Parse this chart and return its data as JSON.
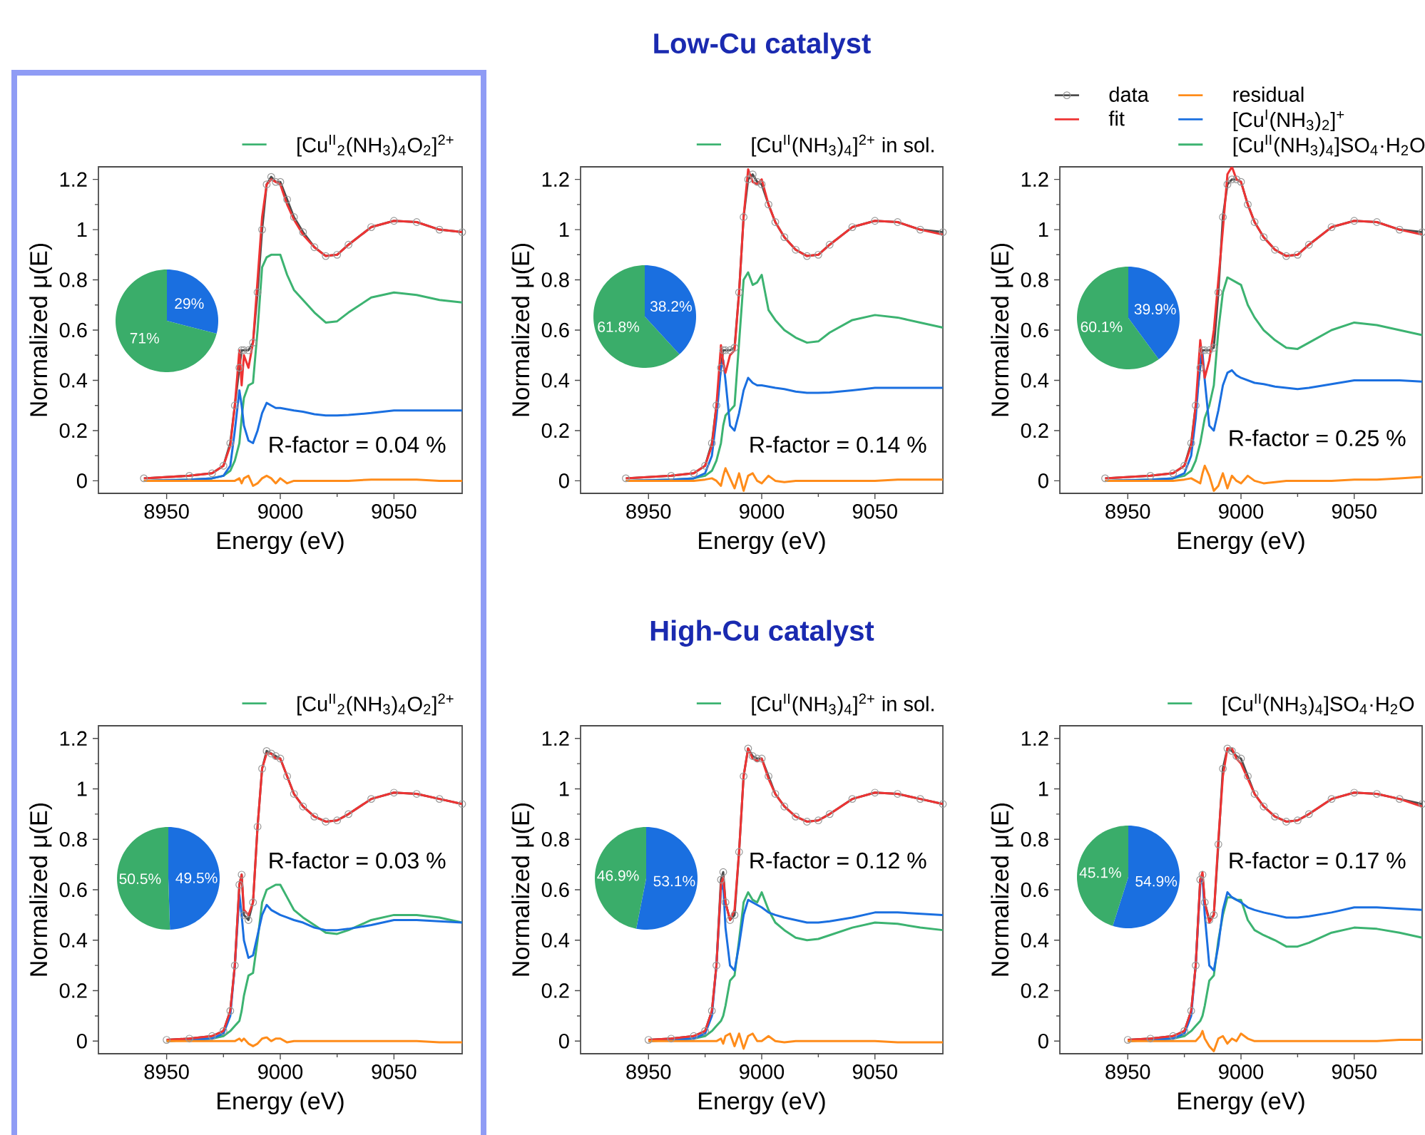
{
  "chart_data": [
    {
      "type": "line",
      "xlabel": "Energy (eV)",
      "ylabel": "Normalized μ(E)",
      "xlim": [
        8920,
        9080
      ],
      "xticks": [
        8950,
        9000,
        9050
      ],
      "ylim": [
        -0.05,
        1.25
      ],
      "yticks": [
        0,
        0.2,
        0.4,
        0.6,
        0.8,
        1,
        1.2
      ],
      "legend": "top right",
      "annotations": [
        "R-factor = 0.04 %"
      ],
      "x": [
        8940,
        8960,
        8970,
        8975,
        8978,
        8980,
        8982,
        8983,
        8984,
        8986,
        8988,
        8990,
        8992,
        8994,
        8996,
        8998,
        9000,
        9003,
        9006,
        9010,
        9015,
        9020,
        9025,
        9030,
        9040,
        9050,
        9060,
        9070,
        9080
      ],
      "series": [
        {
          "color": "#4d4d4d",
          "marker": "circle",
          "values": [
            0.01,
            0.02,
            0.03,
            0.06,
            0.15,
            0.3,
            0.45,
            0.52,
            0.52,
            0.52,
            0.55,
            0.75,
            1.0,
            1.18,
            1.21,
            1.19,
            1.19,
            1.12,
            1.05,
            0.99,
            0.93,
            0.895,
            0.9,
            0.94,
            1.01,
            1.035,
            1.03,
            1.0,
            0.99
          ]
        },
        {
          "color": "#ff8c1a",
          "values": [
            0,
            0,
            0,
            0,
            0,
            0,
            0.01,
            -0.01,
            0.01,
            0.02,
            -0.02,
            -0.01,
            0.01,
            0.02,
            0.01,
            -0.01,
            0.01,
            -0.01,
            0,
            0,
            0,
            0,
            0,
            0,
            0.005,
            0.005,
            0.005,
            0,
            0
          ]
        },
        {
          "color": "#ee3333",
          "values": [
            0.01,
            0.02,
            0.03,
            0.06,
            0.14,
            0.3,
            0.52,
            0.38,
            0.5,
            0.45,
            0.55,
            0.8,
            1.05,
            1.18,
            1.2,
            1.19,
            1.18,
            1.1,
            1.04,
            0.98,
            0.93,
            0.895,
            0.9,
            0.94,
            1.01,
            1.035,
            1.03,
            1.0,
            0.99
          ]
        },
        {
          "color": "#1a6fe0",
          "values": [
            0,
            0.005,
            0.01,
            0.02,
            0.06,
            0.2,
            0.36,
            0.3,
            0.22,
            0.16,
            0.15,
            0.2,
            0.27,
            0.31,
            0.3,
            0.29,
            0.29,
            0.285,
            0.28,
            0.275,
            0.265,
            0.26,
            0.26,
            0.262,
            0.27,
            0.28,
            0.28,
            0.28,
            0.28
          ]
        },
        {
          "name": "[Cu$^{II}$$_{2}$(NH$_{3}$)$_{4}$O$_{2}$]$^{2+}$",
          "color": "#3cb371",
          "values": [
            0,
            0.005,
            0.01,
            0.02,
            0.04,
            0.08,
            0.15,
            0.25,
            0.33,
            0.38,
            0.39,
            0.6,
            0.85,
            0.89,
            0.9,
            0.9,
            0.9,
            0.82,
            0.76,
            0.72,
            0.67,
            0.63,
            0.635,
            0.67,
            0.73,
            0.75,
            0.74,
            0.72,
            0.71
          ]
        }
      ]
    },
    {
      "type": "pie",
      "categories": [
        null,
        null
      ],
      "values": [
        29,
        71
      ],
      "colors": [
        "#1a6fe0",
        "#3aad6a"
      ],
      "value_labels": [
        "29%",
        "71%"
      ]
    },
    {
      "type": "line",
      "title": "Low-Cu catalyst",
      "xlabel": "Energy (eV)",
      "ylabel": "Normalized μ(E)",
      "xlim": [
        8920,
        9080
      ],
      "xticks": [
        8950,
        9000,
        9050
      ],
      "ylim": [
        -0.05,
        1.25
      ],
      "yticks": [
        0,
        0.2,
        0.4,
        0.6,
        0.8,
        1,
        1.2
      ],
      "legend": "top right",
      "annotations": [
        "R-factor = 0.14 %"
      ],
      "x": [
        8940,
        8960,
        8970,
        8975,
        8978,
        8980,
        8982,
        8983,
        8984,
        8986,
        8988,
        8990,
        8992,
        8994,
        8996,
        8998,
        9000,
        9003,
        9006,
        9010,
        9015,
        9020,
        9025,
        9030,
        9040,
        9050,
        9060,
        9070,
        9080
      ],
      "series": [
        {
          "color": "#4d4d4d",
          "marker": "circle",
          "values": [
            0.01,
            0.02,
            0.03,
            0.06,
            0.15,
            0.3,
            0.45,
            0.52,
            0.52,
            0.52,
            0.53,
            0.75,
            1.05,
            1.2,
            1.22,
            1.19,
            1.18,
            1.1,
            1.03,
            0.97,
            0.92,
            0.895,
            0.9,
            0.94,
            1.01,
            1.035,
            1.03,
            1.0,
            0.99
          ]
        },
        {
          "color": "#ff8c1a",
          "values": [
            0,
            0,
            0,
            0.005,
            0.01,
            0,
            -0.02,
            0.02,
            0.05,
            0.01,
            -0.03,
            0.03,
            -0.04,
            0.02,
            0.03,
            0,
            -0.01,
            0.02,
            0,
            -0.005,
            0,
            0,
            0,
            0,
            0,
            0,
            0.005,
            0.005,
            0.005
          ]
        },
        {
          "color": "#ee3333",
          "values": [
            0.01,
            0.02,
            0.03,
            0.06,
            0.14,
            0.3,
            0.54,
            0.47,
            0.43,
            0.5,
            0.52,
            0.75,
            1.05,
            1.24,
            1.19,
            1.18,
            1.2,
            1.1,
            1.03,
            0.97,
            0.92,
            0.895,
            0.9,
            0.94,
            1.01,
            1.035,
            1.03,
            1.0,
            0.98
          ]
        },
        {
          "color": "#1a6fe0",
          "values": [
            0,
            0.005,
            0.01,
            0.03,
            0.1,
            0.25,
            0.45,
            0.48,
            0.4,
            0.22,
            0.2,
            0.27,
            0.36,
            0.41,
            0.39,
            0.38,
            0.38,
            0.375,
            0.37,
            0.365,
            0.355,
            0.35,
            0.35,
            0.352,
            0.36,
            0.37,
            0.37,
            0.37,
            0.37
          ]
        },
        {
          "name": "[Cu$^{II}$(NH$_{3}$)$_{4}$]$^{2+}$ in sol.",
          "color": "#3cb371",
          "values": [
            0,
            0.005,
            0.01,
            0.02,
            0.04,
            0.08,
            0.15,
            0.22,
            0.26,
            0.28,
            0.3,
            0.55,
            0.8,
            0.83,
            0.78,
            0.79,
            0.82,
            0.68,
            0.64,
            0.6,
            0.57,
            0.55,
            0.555,
            0.59,
            0.64,
            0.66,
            0.65,
            0.63,
            0.61
          ]
        }
      ]
    },
    {
      "type": "pie",
      "categories": [
        null,
        null
      ],
      "values": [
        38.2,
        61.8
      ],
      "colors": [
        "#1a6fe0",
        "#3aad6a"
      ],
      "value_labels": [
        "38.2%",
        "61.8%"
      ]
    },
    {
      "type": "line",
      "xlabel": "Energy (eV)",
      "ylabel": "Normalized μ(E)",
      "xlim": [
        8920,
        9080
      ],
      "xticks": [
        8950,
        9000,
        9050
      ],
      "ylim": [
        -0.05,
        1.25
      ],
      "yticks": [
        0,
        0.2,
        0.4,
        0.6,
        0.8,
        1,
        1.2
      ],
      "legend": "top",
      "annotations": [
        "R-factor = 0.25 %"
      ],
      "x": [
        8940,
        8960,
        8970,
        8975,
        8978,
        8980,
        8982,
        8983,
        8984,
        8986,
        8988,
        8990,
        8992,
        8994,
        8996,
        8998,
        9000,
        9003,
        9006,
        9010,
        9015,
        9020,
        9025,
        9030,
        9040,
        9050,
        9060,
        9070,
        9080
      ],
      "series": [
        {
          "name": "data",
          "color": "#4d4d4d",
          "marker": "circle",
          "values": [
            0.01,
            0.02,
            0.03,
            0.06,
            0.15,
            0.3,
            0.45,
            0.52,
            0.52,
            0.52,
            0.53,
            0.75,
            1.05,
            1.18,
            1.2,
            1.2,
            1.19,
            1.1,
            1.03,
            0.97,
            0.92,
            0.895,
            0.9,
            0.94,
            1.01,
            1.035,
            1.03,
            1.0,
            0.99
          ]
        },
        {
          "name": "residual",
          "color": "#ff8c1a",
          "values": [
            0,
            0,
            0,
            0.005,
            0.01,
            0,
            -0.01,
            0.03,
            0.06,
            0.02,
            -0.04,
            -0.02,
            0.03,
            -0.03,
            0.02,
            0,
            -0.01,
            0.02,
            0,
            -0.01,
            -0.005,
            0,
            0,
            0,
            0,
            0.005,
            0.005,
            0.01,
            0.015
          ]
        },
        {
          "name": "fit",
          "color": "#ee3333",
          "values": [
            0.01,
            0.02,
            0.03,
            0.06,
            0.14,
            0.3,
            0.56,
            0.48,
            0.41,
            0.48,
            0.6,
            0.8,
            1.0,
            1.22,
            1.25,
            1.2,
            1.19,
            1.1,
            1.03,
            0.97,
            0.92,
            0.895,
            0.9,
            0.94,
            1.01,
            1.035,
            1.03,
            1.0,
            0.98
          ]
        },
        {
          "name": "[Cu$^{I}$(NH$_{3}$)$_{2}$]$^{+}$",
          "color": "#1a6fe0",
          "values": [
            0,
            0.005,
            0.01,
            0.03,
            0.1,
            0.25,
            0.48,
            0.51,
            0.4,
            0.22,
            0.2,
            0.28,
            0.38,
            0.43,
            0.44,
            0.42,
            0.41,
            0.4,
            0.39,
            0.385,
            0.375,
            0.37,
            0.365,
            0.37,
            0.385,
            0.4,
            0.4,
            0.4,
            0.395
          ]
        },
        {
          "name": "[Cu$^{II}$(NH$_{3}$)$_{4}$]SO$_{4}$·H$_{2}$O",
          "color": "#3cb371",
          "values": [
            0,
            0.005,
            0.01,
            0.02,
            0.04,
            0.08,
            0.15,
            0.2,
            0.25,
            0.3,
            0.38,
            0.6,
            0.75,
            0.81,
            0.8,
            0.79,
            0.78,
            0.7,
            0.65,
            0.6,
            0.56,
            0.53,
            0.525,
            0.55,
            0.6,
            0.63,
            0.62,
            0.6,
            0.58
          ]
        }
      ]
    },
    {
      "type": "pie",
      "categories": [
        null,
        null
      ],
      "values": [
        39.9,
        60.1
      ],
      "colors": [
        "#1a6fe0",
        "#3aad6a"
      ],
      "value_labels": [
        "39.9%",
        "60.1%"
      ]
    },
    {
      "type": "line",
      "xlabel": "Energy (eV)",
      "ylabel": "Normalized μ(E)",
      "xlim": [
        8920,
        9080
      ],
      "xticks": [
        8950,
        9000,
        9050
      ],
      "ylim": [
        -0.05,
        1.25
      ],
      "yticks": [
        0,
        0.2,
        0.4,
        0.6,
        0.8,
        1,
        1.2
      ],
      "legend": "top right",
      "annotations": [
        "R-factor = 0.03 %"
      ],
      "x": [
        8950,
        8960,
        8970,
        8975,
        8978,
        8980,
        8982,
        8983,
        8984,
        8986,
        8988,
        8990,
        8992,
        8994,
        8996,
        8998,
        9000,
        9003,
        9006,
        9010,
        9015,
        9020,
        9025,
        9030,
        9040,
        9050,
        9060,
        9070,
        9080
      ],
      "series": [
        {
          "color": "#4d4d4d",
          "marker": "circle",
          "values": [
            0.005,
            0.01,
            0.02,
            0.04,
            0.12,
            0.3,
            0.62,
            0.66,
            0.5,
            0.48,
            0.55,
            0.85,
            1.08,
            1.15,
            1.14,
            1.13,
            1.12,
            1.05,
            0.98,
            0.93,
            0.89,
            0.87,
            0.875,
            0.9,
            0.96,
            0.985,
            0.98,
            0.96,
            0.94
          ]
        },
        {
          "color": "#ff8c1a",
          "values": [
            0,
            0,
            0,
            0,
            0,
            0,
            0.01,
            0,
            0.01,
            -0.01,
            -0.02,
            -0.01,
            0.01,
            0.015,
            0,
            0.01,
            0.01,
            -0.005,
            0,
            0,
            0,
            0,
            0,
            0,
            0,
            0,
            0,
            -0.005,
            -0.005
          ]
        },
        {
          "color": "#ee3333",
          "values": [
            0.005,
            0.01,
            0.02,
            0.04,
            0.12,
            0.3,
            0.62,
            0.66,
            0.52,
            0.5,
            0.55,
            0.85,
            1.08,
            1.14,
            1.14,
            1.12,
            1.12,
            1.05,
            0.98,
            0.93,
            0.89,
            0.87,
            0.875,
            0.9,
            0.96,
            0.985,
            0.98,
            0.96,
            0.94
          ]
        },
        {
          "color": "#1a6fe0",
          "values": [
            0,
            0.005,
            0.01,
            0.03,
            0.1,
            0.3,
            0.58,
            0.5,
            0.4,
            0.33,
            0.34,
            0.42,
            0.5,
            0.54,
            0.52,
            0.51,
            0.5,
            0.49,
            0.48,
            0.47,
            0.45,
            0.44,
            0.44,
            0.445,
            0.46,
            0.48,
            0.48,
            0.475,
            0.47
          ]
        },
        {
          "name": "[Cu$^{II}$$_{2}$(NH$_{3}$)$_{4}$O$_{2}$]$^{2+}$",
          "color": "#3cb371",
          "values": [
            0,
            0.005,
            0.01,
            0.02,
            0.04,
            0.06,
            0.08,
            0.12,
            0.18,
            0.26,
            0.27,
            0.4,
            0.55,
            0.6,
            0.61,
            0.62,
            0.62,
            0.57,
            0.52,
            0.49,
            0.46,
            0.43,
            0.425,
            0.44,
            0.48,
            0.5,
            0.5,
            0.49,
            0.47
          ]
        }
      ]
    },
    {
      "type": "pie",
      "categories": [
        null,
        null
      ],
      "values": [
        49.5,
        50.5
      ],
      "colors": [
        "#1a6fe0",
        "#3aad6a"
      ],
      "value_labels": [
        "49.5%",
        "50.5%"
      ]
    },
    {
      "type": "line",
      "title": "High-Cu catalyst",
      "xlabel": "Energy (eV)",
      "ylabel": "Normalized μ(E)",
      "xlim": [
        8920,
        9080
      ],
      "xticks": [
        8950,
        9000,
        9050
      ],
      "ylim": [
        -0.05,
        1.25
      ],
      "yticks": [
        0,
        0.2,
        0.4,
        0.6,
        0.8,
        1,
        1.2
      ],
      "legend": "top right",
      "annotations": [
        "R-factor = 0.12 %"
      ],
      "x": [
        8950,
        8960,
        8970,
        8975,
        8978,
        8980,
        8982,
        8983,
        8984,
        8986,
        8988,
        8990,
        8992,
        8994,
        8996,
        8998,
        9000,
        9003,
        9006,
        9010,
        9015,
        9020,
        9025,
        9030,
        9040,
        9050,
        9060,
        9070,
        9080
      ],
      "series": [
        {
          "color": "#4d4d4d",
          "marker": "circle",
          "values": [
            0.005,
            0.01,
            0.02,
            0.04,
            0.12,
            0.3,
            0.64,
            0.67,
            0.55,
            0.48,
            0.5,
            0.75,
            1.05,
            1.16,
            1.13,
            1.12,
            1.12,
            1.05,
            0.98,
            0.93,
            0.89,
            0.87,
            0.875,
            0.9,
            0.96,
            0.985,
            0.98,
            0.96,
            0.94
          ]
        },
        {
          "color": "#ff8c1a",
          "values": [
            0,
            0,
            0,
            0,
            0,
            0,
            0.01,
            -0.01,
            0.02,
            0.03,
            -0.02,
            0.03,
            -0.03,
            0.02,
            0.03,
            0,
            0,
            0.02,
            0,
            -0.005,
            0,
            0,
            0,
            0,
            0,
            0,
            -0.005,
            -0.005,
            -0.005
          ]
        },
        {
          "color": "#ee3333",
          "values": [
            0.005,
            0.01,
            0.02,
            0.04,
            0.12,
            0.3,
            0.62,
            0.65,
            0.55,
            0.48,
            0.52,
            0.75,
            1.05,
            1.16,
            1.12,
            1.11,
            1.12,
            1.04,
            0.98,
            0.93,
            0.89,
            0.87,
            0.875,
            0.9,
            0.96,
            0.985,
            0.98,
            0.96,
            0.94
          ]
        },
        {
          "color": "#1a6fe0",
          "values": [
            0,
            0.005,
            0.01,
            0.03,
            0.1,
            0.3,
            0.6,
            0.62,
            0.45,
            0.3,
            0.28,
            0.38,
            0.5,
            0.56,
            0.55,
            0.54,
            0.53,
            0.51,
            0.5,
            0.49,
            0.48,
            0.47,
            0.47,
            0.475,
            0.49,
            0.51,
            0.51,
            0.505,
            0.5
          ]
        },
        {
          "name": "[Cu$^{II}$(NH$_{3}$)$_{4}$]$^{2+}$ in sol.",
          "color": "#3cb371",
          "values": [
            0,
            0.005,
            0.01,
            0.02,
            0.04,
            0.06,
            0.08,
            0.1,
            0.14,
            0.24,
            0.26,
            0.4,
            0.55,
            0.59,
            0.56,
            0.55,
            0.59,
            0.52,
            0.47,
            0.44,
            0.41,
            0.4,
            0.405,
            0.42,
            0.45,
            0.47,
            0.465,
            0.45,
            0.44
          ]
        }
      ]
    },
    {
      "type": "pie",
      "categories": [
        null,
        null
      ],
      "values": [
        53.1,
        46.9
      ],
      "colors": [
        "#1a6fe0",
        "#3aad6a"
      ],
      "value_labels": [
        "53.1%",
        "46.9%"
      ]
    },
    {
      "type": "line",
      "xlabel": "Energy (eV)",
      "ylabel": "Normalized μ(E)",
      "xlim": [
        8920,
        9080
      ],
      "xticks": [
        8950,
        9000,
        9050
      ],
      "ylim": [
        -0.05,
        1.25
      ],
      "yticks": [
        0,
        0.2,
        0.4,
        0.6,
        0.8,
        1,
        1.2
      ],
      "legend": "top right",
      "annotations": [
        "R-factor = 0.17 %"
      ],
      "x": [
        8950,
        8960,
        8970,
        8975,
        8978,
        8980,
        8982,
        8983,
        8984,
        8986,
        8988,
        8990,
        8992,
        8994,
        8996,
        8998,
        9000,
        9003,
        9006,
        9010,
        9015,
        9020,
        9025,
        9030,
        9040,
        9050,
        9060,
        9070,
        9080
      ],
      "series": [
        {
          "color": "#4d4d4d",
          "marker": "circle",
          "values": [
            0.005,
            0.01,
            0.02,
            0.04,
            0.12,
            0.3,
            0.64,
            0.66,
            0.55,
            0.48,
            0.5,
            0.78,
            1.08,
            1.16,
            1.15,
            1.13,
            1.12,
            1.05,
            0.98,
            0.93,
            0.89,
            0.87,
            0.875,
            0.9,
            0.96,
            0.985,
            0.98,
            0.96,
            0.94
          ]
        },
        {
          "color": "#ff8c1a",
          "values": [
            0,
            0,
            0,
            0,
            0,
            0,
            0.02,
            0.04,
            0.01,
            -0.02,
            -0.04,
            0.01,
            0.02,
            -0.01,
            0.01,
            0,
            0.03,
            0.01,
            0,
            0,
            0,
            0,
            0,
            0,
            0,
            0,
            0,
            0.005,
            0.005
          ]
        },
        {
          "color": "#ee3333",
          "values": [
            0.005,
            0.01,
            0.02,
            0.04,
            0.12,
            0.3,
            0.64,
            0.67,
            0.55,
            0.47,
            0.5,
            0.8,
            1.05,
            1.16,
            1.16,
            1.12,
            1.1,
            1.04,
            0.98,
            0.93,
            0.89,
            0.87,
            0.875,
            0.9,
            0.96,
            0.985,
            0.98,
            0.96,
            0.93
          ]
        },
        {
          "color": "#1a6fe0",
          "values": [
            0,
            0.005,
            0.01,
            0.03,
            0.1,
            0.3,
            0.62,
            0.65,
            0.5,
            0.3,
            0.28,
            0.38,
            0.52,
            0.59,
            0.57,
            0.56,
            0.55,
            0.53,
            0.52,
            0.51,
            0.5,
            0.49,
            0.49,
            0.495,
            0.51,
            0.53,
            0.53,
            0.525,
            0.52
          ]
        },
        {
          "name": "[Cu$^{II}$(NH$_{3}$)$_{4}$]SO$_{4}$·H$_{2}$O",
          "color": "#3cb371",
          "values": [
            0,
            0.005,
            0.01,
            0.02,
            0.04,
            0.06,
            0.08,
            0.1,
            0.14,
            0.24,
            0.26,
            0.4,
            0.5,
            0.57,
            0.57,
            0.56,
            0.56,
            0.48,
            0.44,
            0.42,
            0.4,
            0.375,
            0.375,
            0.39,
            0.43,
            0.45,
            0.445,
            0.43,
            0.41
          ]
        }
      ]
    },
    {
      "type": "pie",
      "categories": [
        null,
        null
      ],
      "values": [
        54.9,
        45.1
      ],
      "colors": [
        "#1a6fe0",
        "#3aad6a"
      ],
      "value_labels": [
        "54.9%",
        "45.1%"
      ]
    }
  ]
}
